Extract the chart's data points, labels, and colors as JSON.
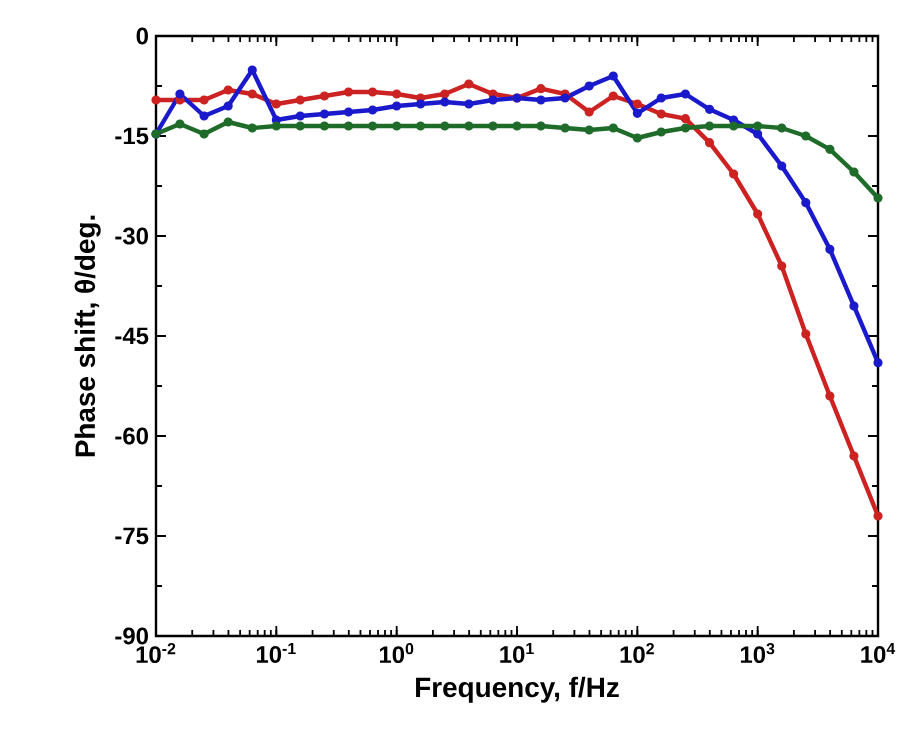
{
  "chart_data": {
    "type": "line",
    "xlabel": "Frequency, f/Hz",
    "ylabel": "Phase shift, θ/deg.",
    "log": "x",
    "grid": false,
    "marker": "circle",
    "line_style": "solid",
    "xlim": [
      0.01,
      10000
    ],
    "ylim": [
      -90,
      0
    ],
    "xticks": [
      {
        "value": 0.01,
        "label": "10$^{-2}$"
      },
      {
        "value": 0.1,
        "label": "10$^{-1}$"
      },
      {
        "value": 1,
        "label": "10$^{0}$"
      },
      {
        "value": 10,
        "label": "10$^{1}$"
      },
      {
        "value": 100,
        "label": "10$^{2}$"
      },
      {
        "value": 1000,
        "label": "10$^{3}$"
      },
      {
        "value": 10000,
        "label": "10$^{4}$"
      }
    ],
    "yticks": [
      -90,
      -75,
      -60,
      -45,
      -30,
      -15,
      0
    ],
    "x": [
      0.01,
      0.0158,
      0.0251,
      0.0398,
      0.0631,
      0.1,
      0.158,
      0.251,
      0.398,
      0.631,
      1,
      1.58,
      2.51,
      3.98,
      6.31,
      10,
      15.8,
      25.1,
      39.8,
      63.1,
      100,
      158,
      251,
      398,
      631,
      1000,
      1585,
      2512,
      3981,
      6310,
      10000
    ],
    "series": [
      {
        "color": "#cc2222",
        "values": [
          -9.6,
          -9.6,
          -9.6,
          -8.1,
          -8.7,
          -10.2,
          -9.6,
          -9,
          -8.4,
          -8.4,
          -8.7,
          -9.3,
          -8.7,
          -7.2,
          -8.7,
          -9.3,
          -7.9,
          -8.7,
          -11.4,
          -9,
          -10.2,
          -11.7,
          -12.4,
          -16,
          -20.7,
          -26.7,
          -34.5,
          -44.7,
          -54,
          -63,
          -72
        ]
      },
      {
        "color": "#1a1acc",
        "values": [
          -14.7,
          -8.7,
          -12,
          -10.5,
          -5.1,
          -12.6,
          -12,
          -11.7,
          -11.4,
          -11.1,
          -10.5,
          -10.2,
          -9.9,
          -10.2,
          -9.6,
          -9.3,
          -9.6,
          -9.3,
          -7.5,
          -6,
          -11.6,
          -9.3,
          -8.7,
          -11,
          -12.6,
          -14.7,
          -19.5,
          -25,
          -32,
          -40.5,
          -49
        ]
      },
      {
        "color": "#1e6b2a",
        "values": [
          -14.7,
          -13.2,
          -14.7,
          -12.9,
          -13.8,
          -13.5,
          -13.5,
          -13.5,
          -13.5,
          -13.5,
          -13.5,
          -13.5,
          -13.5,
          -13.5,
          -13.5,
          -13.5,
          -13.5,
          -13.8,
          -14.1,
          -13.8,
          -15.3,
          -14.4,
          -13.8,
          -13.5,
          -13.5,
          -13.5,
          -13.8,
          -15,
          -17,
          -20.4,
          -24.3
        ]
      }
    ]
  }
}
